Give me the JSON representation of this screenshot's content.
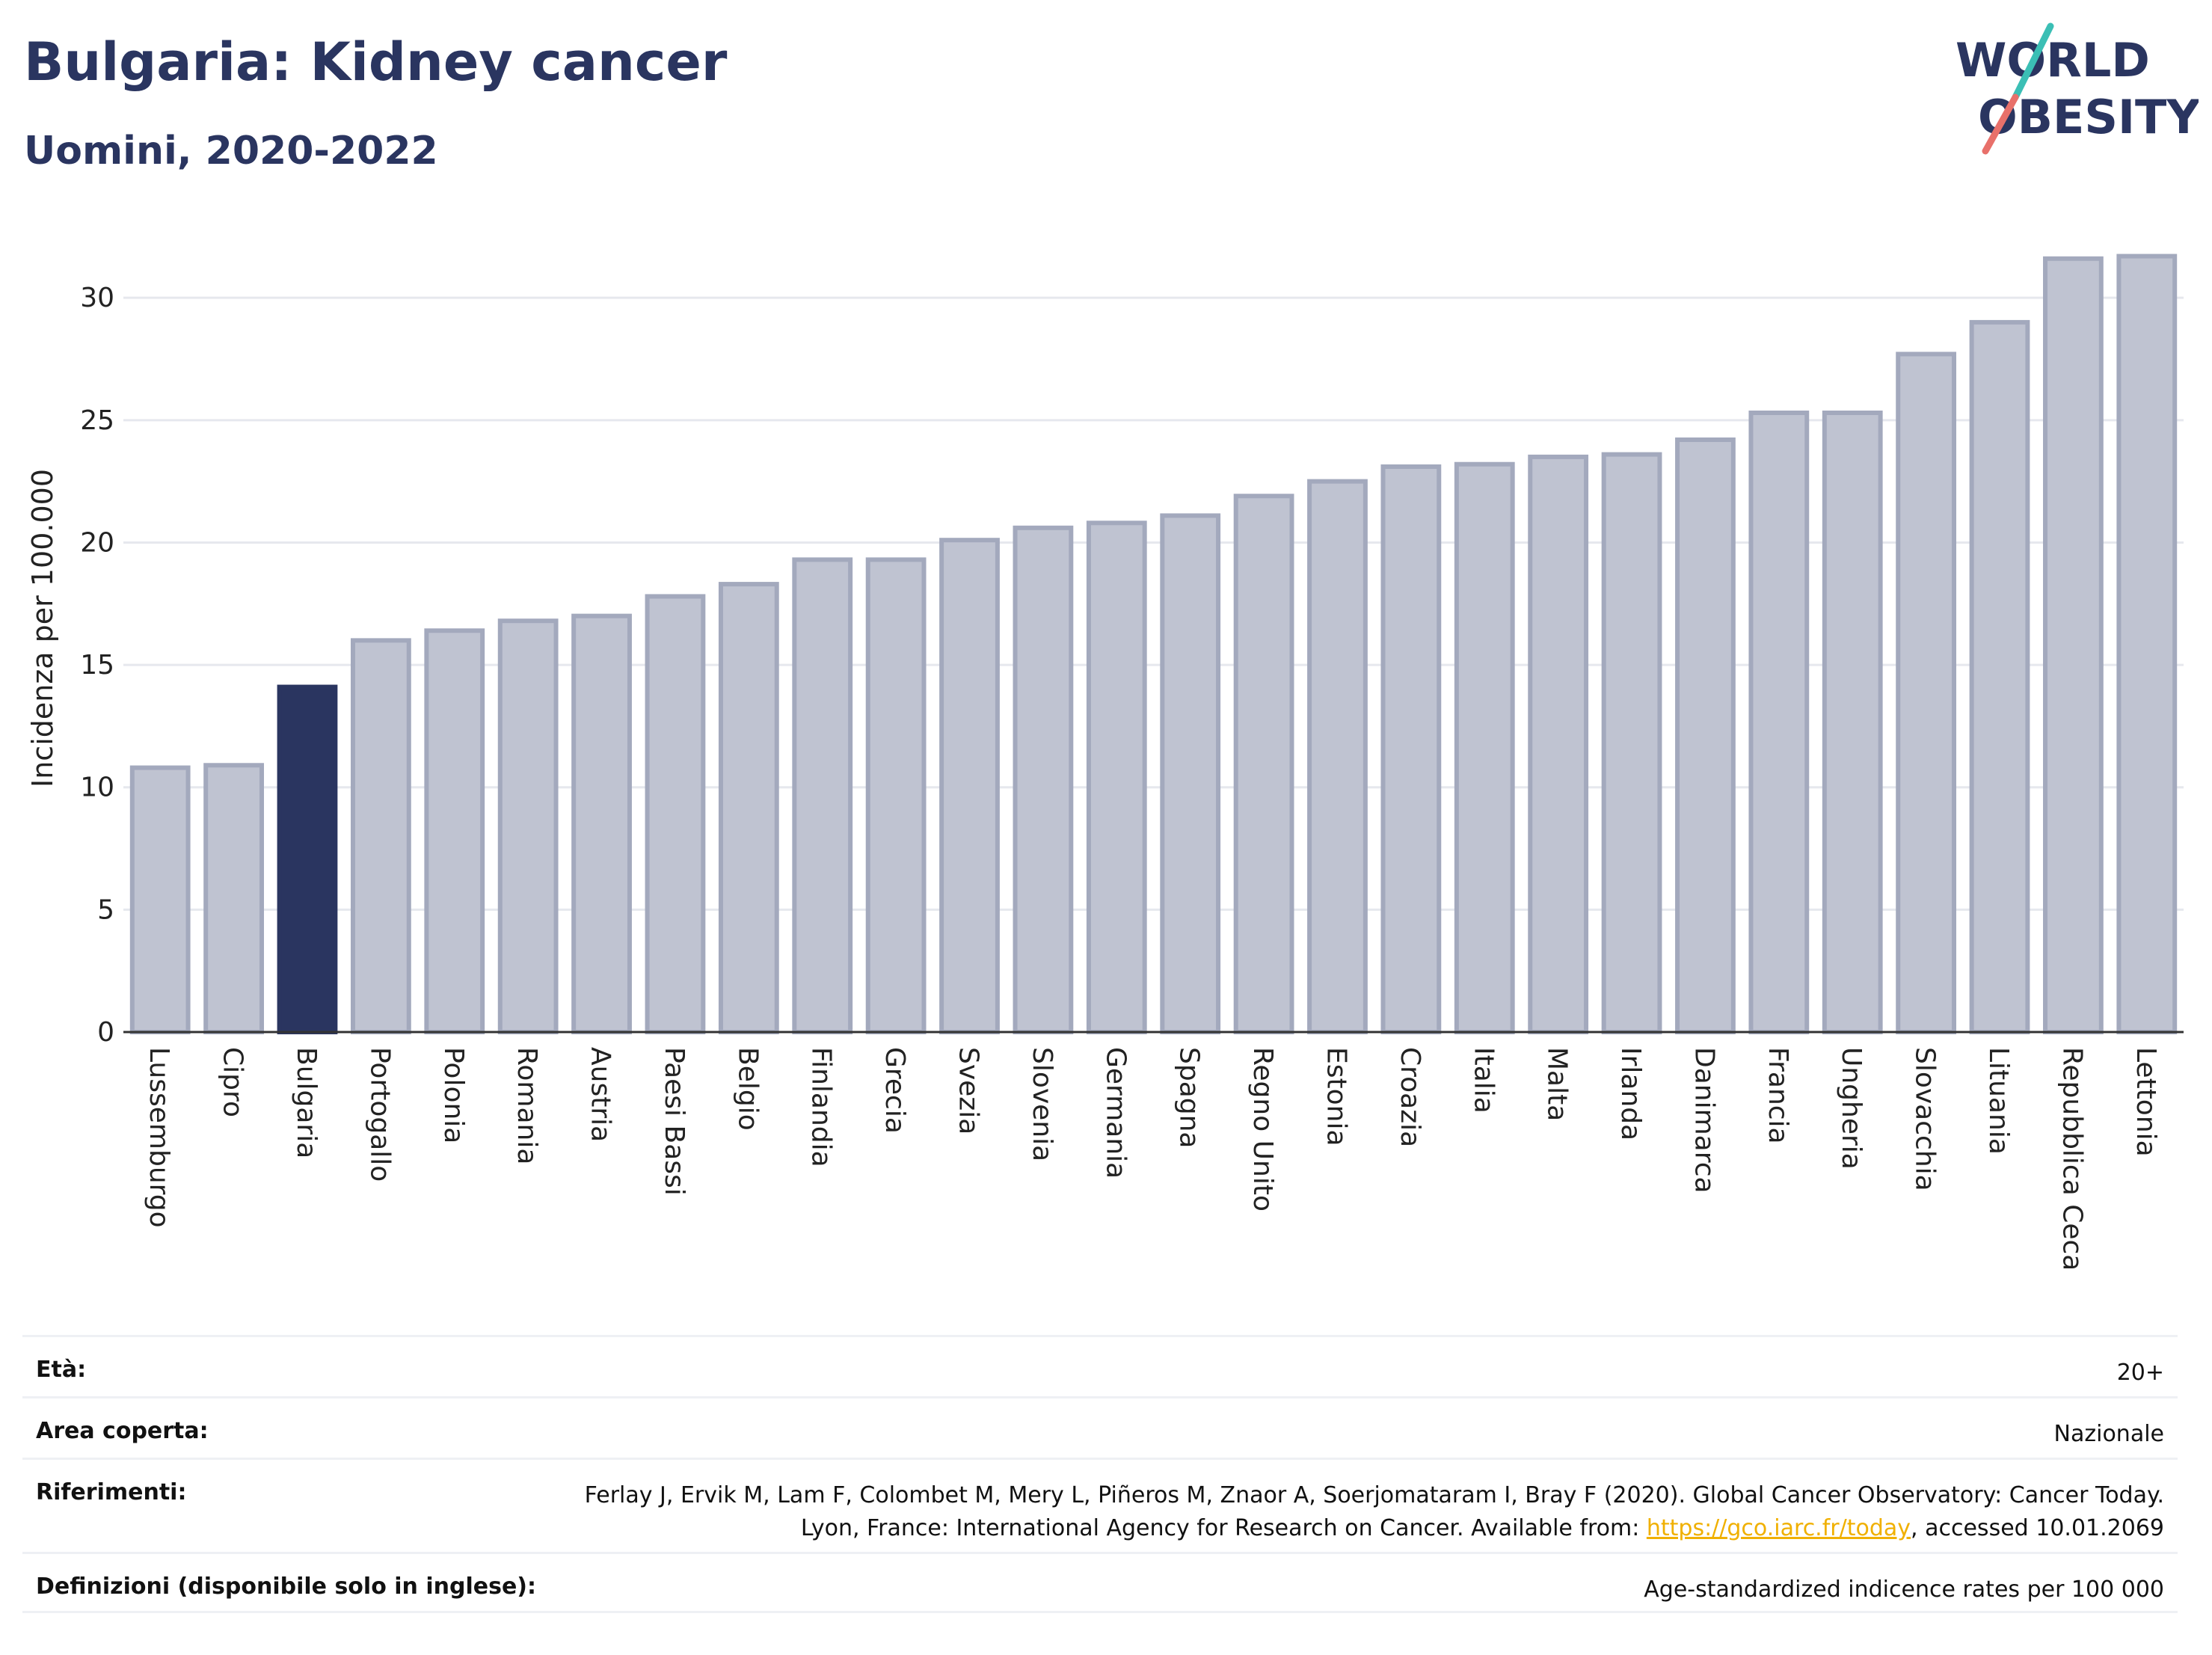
{
  "header": {
    "title": "Bulgaria: Kidney cancer",
    "subtitle": "Uomini, 2020-2022"
  },
  "logo": {
    "line1": "WORLD",
    "line2": "OBESITY",
    "accent": "#e8706a",
    "accent2": "#3bbfb5"
  },
  "colors": {
    "bar": "#bfc3d1",
    "bar_stroke": "#a3a9bd",
    "highlight": "#2a3560",
    "grid": "#e6e8ee",
    "axis": "#333333"
  },
  "chart_data": {
    "type": "bar",
    "ylabel": "Incidenza per 100.000",
    "ylim": [
      0,
      33
    ],
    "yticks": [
      0,
      5,
      10,
      15,
      20,
      25,
      30
    ],
    "highlight": "Bulgaria",
    "categories": [
      "Lussemburgo",
      "Cipro",
      "Bulgaria",
      "Portogallo",
      "Polonia",
      "Romania",
      "Austria",
      "Paesi Bassi",
      "Belgio",
      "Finlandia",
      "Grecia",
      "Svezia",
      "Slovenia",
      "Germania",
      "Spagna",
      "Regno Unito",
      "Estonia",
      "Croazia",
      "Italia",
      "Malta",
      "Irlanda",
      "Danimarca",
      "Francia",
      "Ungheria",
      "Slovacchia",
      "Lituania",
      "Repubblica Ceca",
      "Lettonia"
    ],
    "values": [
      10.8,
      10.9,
      14.1,
      16.0,
      16.4,
      16.8,
      17.0,
      17.8,
      18.3,
      19.3,
      19.3,
      20.1,
      20.6,
      20.8,
      21.1,
      21.9,
      22.5,
      23.1,
      23.2,
      23.5,
      23.6,
      24.2,
      25.3,
      25.3,
      27.7,
      29.0,
      31.6,
      31.7
    ],
    "grid": true
  },
  "info": {
    "age_label": "Età:",
    "age_value": "20+",
    "area_label": "Area coperta:",
    "area_value": "Nazionale",
    "ref_label": "Riferimenti:",
    "ref_text_1": "Ferlay J, Ervik M, Lam F, Colombet M, Mery L, Piñeros M, Znaor A, Soerjomataram I, Bray F (2020). Global Cancer Observatory: Cancer Today. Lyon, France: International Agency for Research on Cancer. Available from: ",
    "ref_link": "https://gco.iarc.fr/today",
    "ref_text_2": ", accessed 10.01.2069",
    "def_label": "Definizioni (disponibile solo in inglese):",
    "def_value": "Age-standardized indicence rates per 100 000"
  }
}
